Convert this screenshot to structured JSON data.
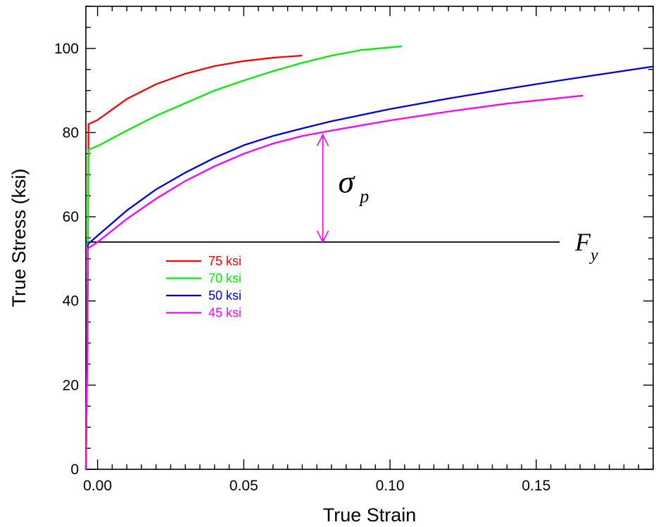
{
  "chart_data": {
    "type": "line",
    "title": "",
    "xlabel": "True Strain",
    "ylabel": "True Stress (ksi)",
    "xlim": [
      -0.004,
      0.19
    ],
    "ylim": [
      0,
      110
    ],
    "x_ticks": [
      0.0,
      0.05,
      0.1,
      0.15
    ],
    "x_tick_labels": [
      "0.00",
      "0.05",
      "0.10",
      "0.15"
    ],
    "y_ticks": [
      0,
      20,
      40,
      60,
      80,
      100
    ],
    "y_tick_labels": [
      "0",
      "20",
      "40",
      "60",
      "80",
      "100"
    ],
    "grid": false,
    "legend_position": "center-left",
    "series": [
      {
        "name": "75 ksi",
        "color": "#ff0000",
        "x": [
          -0.004,
          -0.0035,
          -0.0033,
          -0.0031,
          0.0,
          0.005,
          0.01,
          0.02,
          0.03,
          0.04,
          0.05,
          0.06,
          0.07
        ],
        "y": [
          0,
          30,
          55,
          82,
          83,
          85.5,
          88,
          91.5,
          94,
          95.8,
          97,
          97.8,
          98.3
        ]
      },
      {
        "name": "70 ksi",
        "color": "#00ee00",
        "x": [
          -0.004,
          -0.0035,
          -0.0033,
          -0.0031,
          0.0,
          0.01,
          0.02,
          0.03,
          0.04,
          0.05,
          0.06,
          0.07,
          0.08,
          0.09,
          0.104
        ],
        "y": [
          0,
          30,
          55,
          76,
          76.8,
          80.5,
          84,
          87,
          90,
          92.4,
          94.6,
          96.6,
          98.3,
          99.6,
          100.5
        ]
      },
      {
        "name": "50 ksi",
        "color": "#0000dd",
        "x": [
          -0.004,
          -0.0035,
          -0.0033,
          0.0,
          0.01,
          0.02,
          0.03,
          0.04,
          0.05,
          0.06,
          0.07,
          0.08,
          0.1,
          0.12,
          0.14,
          0.16,
          0.19
        ],
        "y": [
          0,
          30,
          53.5,
          55.5,
          61.5,
          66.5,
          70.5,
          74,
          77,
          79.2,
          81,
          82.7,
          85.6,
          88.1,
          90.4,
          92.6,
          95.7
        ]
      },
      {
        "name": "45 ksi",
        "color": "#ff00ff",
        "x": [
          -0.004,
          -0.0035,
          -0.0033,
          0.0,
          0.01,
          0.02,
          0.03,
          0.04,
          0.05,
          0.06,
          0.07,
          0.08,
          0.1,
          0.12,
          0.14,
          0.166
        ],
        "y": [
          0,
          30,
          52.5,
          54,
          59.5,
          64.3,
          68.5,
          72,
          75,
          77.4,
          79.2,
          80.5,
          82.9,
          85,
          86.9,
          88.8
        ]
      }
    ],
    "reference_line": {
      "label": "F",
      "label_subscript": "y",
      "y": 54,
      "x_range": [
        -0.004,
        0.158
      ],
      "color": "#000000"
    },
    "annotation": {
      "label": "σ",
      "label_subscript": "p",
      "x": 0.077,
      "y_range": [
        54,
        79.5
      ],
      "color": "#ff00ff"
    }
  }
}
